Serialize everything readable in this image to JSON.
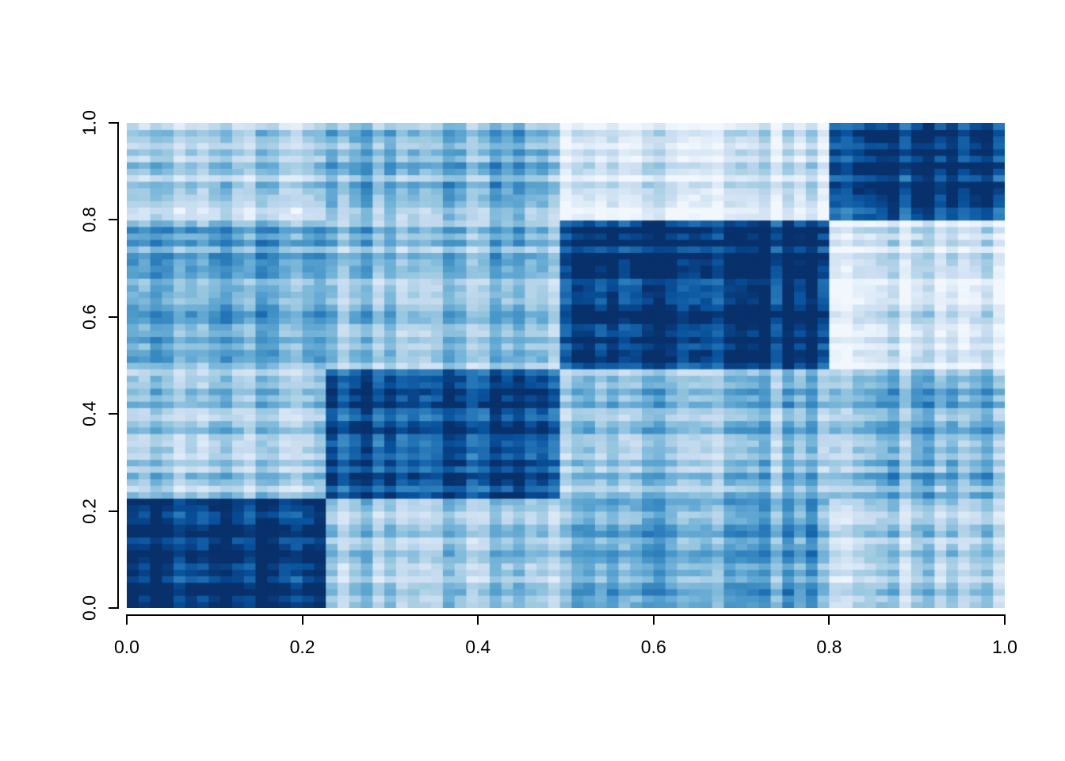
{
  "figure": {
    "background": "#ffffff",
    "axis_color": "#000000"
  },
  "chart_data": {
    "type": "heatmap",
    "title": "",
    "xlabel": "",
    "ylabel": "",
    "xlim": [
      0,
      1
    ],
    "ylim": [
      0,
      1
    ],
    "grid": false,
    "legend": "none",
    "x_ticks": [
      "0.0",
      "0.2",
      "0.4",
      "0.6",
      "0.8",
      "1.0"
    ],
    "x_tick_values": [
      0,
      0.2,
      0.4,
      0.6,
      0.8,
      1.0
    ],
    "y_ticks": [
      "0.0",
      "0.2",
      "0.4",
      "0.6",
      "0.8",
      "1.0"
    ],
    "y_tick_values": [
      0,
      0.2,
      0.4,
      0.6,
      0.8,
      1.0
    ],
    "description": "Block-structured similarity matrix heatmap (4 diagonal communities) with per-node row/column intensity streaks, Blues palette, dark = high value",
    "n_nodes": 75,
    "block_breaks": [
      0,
      0.22,
      0.49,
      0.8,
      1.0
    ],
    "block_means": [
      [
        0.95,
        0.38,
        0.52,
        0.32
      ],
      [
        0.38,
        0.93,
        0.45,
        0.5
      ],
      [
        0.52,
        0.45,
        0.97,
        0.18
      ],
      [
        0.32,
        0.5,
        0.18,
        0.95
      ]
    ],
    "noise": {
      "node": 0.14,
      "cell": 0.06,
      "seed": 42
    },
    "palette": [
      "#f7fbff",
      "#deebf7",
      "#c6dbef",
      "#9ecae1",
      "#6baed6",
      "#4292c6",
      "#2171b5",
      "#08519c",
      "#08306b"
    ],
    "value_range": [
      0,
      1
    ]
  }
}
